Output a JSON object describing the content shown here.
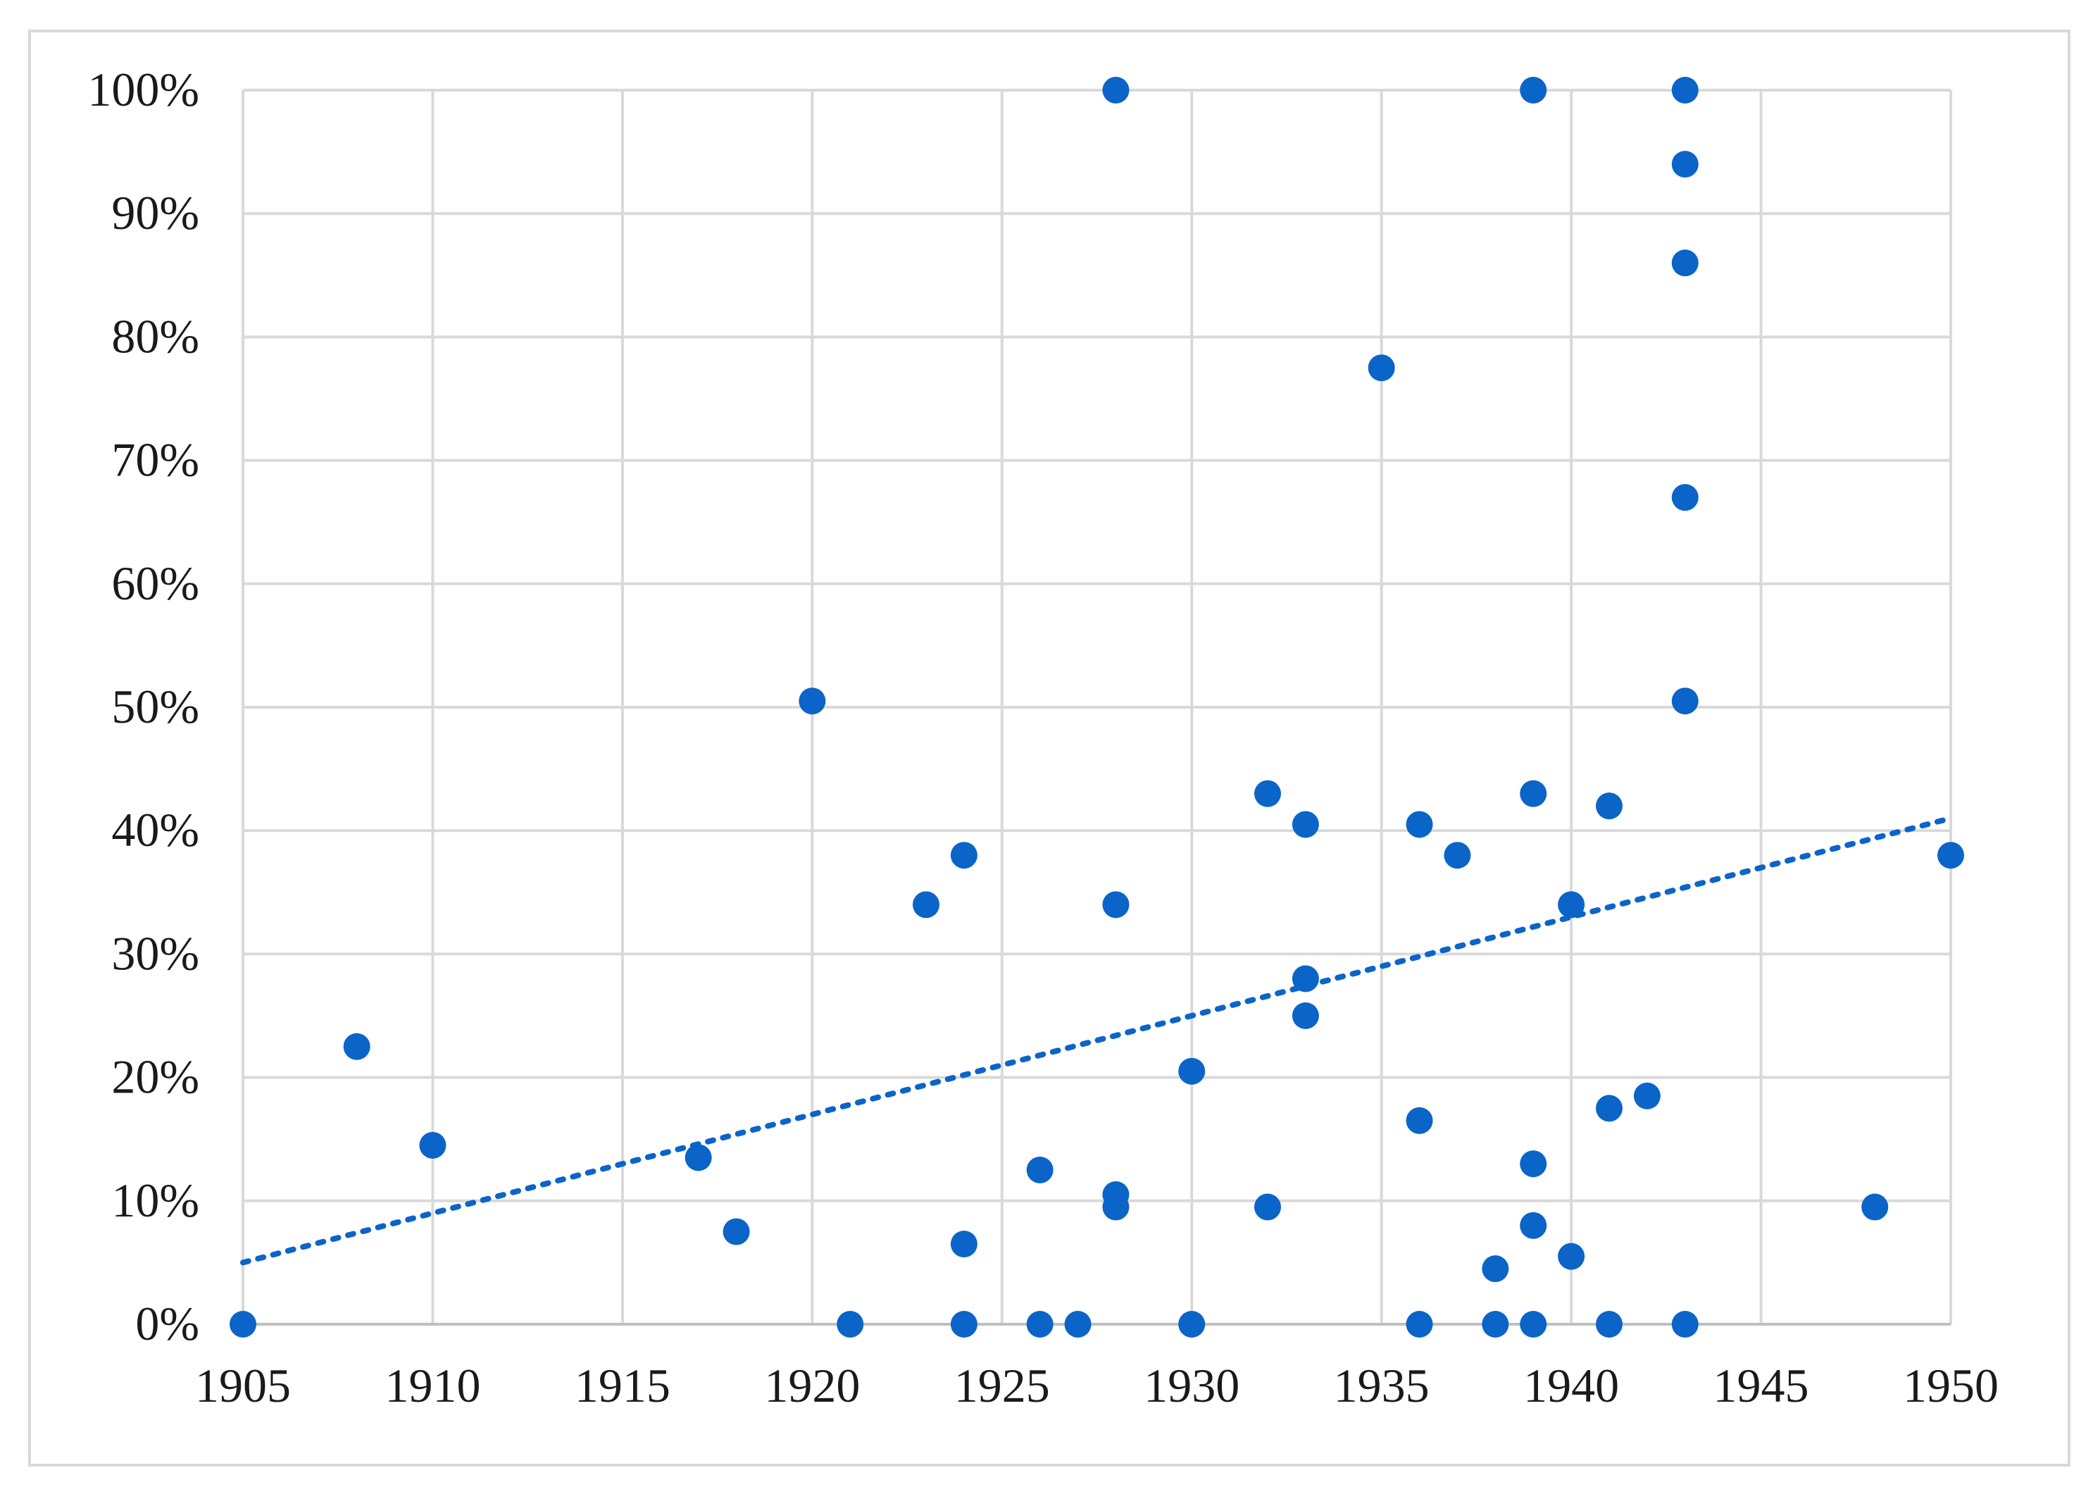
{
  "chart_data": {
    "type": "scatter",
    "title": "",
    "xlabel": "",
    "ylabel": "",
    "xlim": [
      1905,
      1950
    ],
    "ylim": [
      0,
      100
    ],
    "x_ticks": [
      1905,
      1910,
      1915,
      1920,
      1925,
      1930,
      1935,
      1940,
      1945,
      1950
    ],
    "y_ticks": [
      0,
      10,
      20,
      30,
      40,
      50,
      60,
      70,
      80,
      90,
      100
    ],
    "y_tick_labels": [
      "0%",
      "10%",
      "20%",
      "30%",
      "40%",
      "50%",
      "60%",
      "70%",
      "80%",
      "90%",
      "100%"
    ],
    "grid": true,
    "legend": "none",
    "marker_color": "#0b64c8",
    "trendline": {
      "style": "dotted",
      "color": "#0b64c8",
      "x": [
        1905,
        1950
      ],
      "y": [
        5,
        41
      ]
    },
    "series": [
      {
        "points": [
          [
            1905,
            0
          ],
          [
            1908,
            22.5
          ],
          [
            1910,
            14.5
          ],
          [
            1917,
            13.5
          ],
          [
            1918,
            7.5
          ],
          [
            1920,
            50.5
          ],
          [
            1921,
            0
          ],
          [
            1923,
            34
          ],
          [
            1924,
            38
          ],
          [
            1924,
            6.5
          ],
          [
            1924,
            0
          ],
          [
            1926,
            12.5
          ],
          [
            1926,
            0
          ],
          [
            1927,
            0
          ],
          [
            1928,
            100
          ],
          [
            1928,
            34
          ],
          [
            1928,
            10.5
          ],
          [
            1928,
            9.5
          ],
          [
            1930,
            20.5
          ],
          [
            1930,
            0
          ],
          [
            1932,
            43
          ],
          [
            1932,
            9.5
          ],
          [
            1933,
            40.5
          ],
          [
            1933,
            28
          ],
          [
            1933,
            25
          ],
          [
            1935,
            77.5
          ],
          [
            1936,
            40.5
          ],
          [
            1936,
            16.5
          ],
          [
            1936,
            0
          ],
          [
            1937,
            38
          ],
          [
            1938,
            4.5
          ],
          [
            1938,
            0
          ],
          [
            1939,
            100
          ],
          [
            1939,
            43
          ],
          [
            1939,
            13
          ],
          [
            1939,
            8
          ],
          [
            1939,
            0
          ],
          [
            1940,
            34
          ],
          [
            1940,
            5.5
          ],
          [
            1941,
            42
          ],
          [
            1941,
            17.5
          ],
          [
            1941,
            0
          ],
          [
            1942,
            18.5
          ],
          [
            1943,
            100
          ],
          [
            1943,
            94
          ],
          [
            1943,
            86
          ],
          [
            1943,
            67
          ],
          [
            1943,
            50.5
          ],
          [
            1943,
            0
          ],
          [
            1948,
            9.5
          ],
          [
            1950,
            38
          ]
        ]
      }
    ]
  }
}
